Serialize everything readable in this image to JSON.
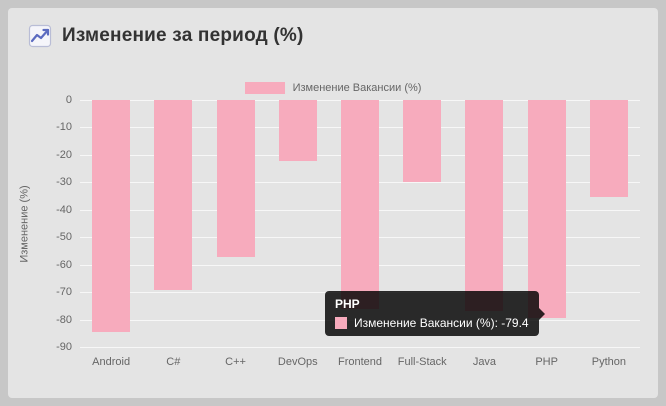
{
  "header": {
    "title": "Изменение за период (%)"
  },
  "colors": {
    "bar_pink": "#f7abbd",
    "text_muted": "#666666",
    "title_text": "#333333",
    "tooltip_bg": "rgba(0,0,0,0.82)"
  },
  "chart_data": {
    "type": "bar",
    "title": "Изменение за период (%)",
    "legend": "Изменение Вакансии (%)",
    "legend_position": "top",
    "grid": true,
    "ylabel": "Изменение (%)",
    "xlabel": "",
    "ylim": [
      -90,
      0
    ],
    "yticks": [
      0,
      -10,
      -20,
      -30,
      -40,
      -50,
      -60,
      -70,
      -80,
      -90
    ],
    "categories": [
      "Android",
      "C#",
      "C++",
      "DevOps",
      "Frontend",
      "Full-Stack",
      "Java",
      "PHP",
      "Python"
    ],
    "series": [
      {
        "name": "Изменение Вакансии (%)",
        "color": "#f7abbd",
        "values": [
          -84.6,
          -69.3,
          -57.1,
          -22.2,
          -76.3,
          -29.7,
          -76.8,
          -79.4,
          -35.3
        ]
      }
    ],
    "tooltip": {
      "title": "PHP",
      "label": "Изменение Вакансии (%): -79.4",
      "value": -79.4
    }
  }
}
